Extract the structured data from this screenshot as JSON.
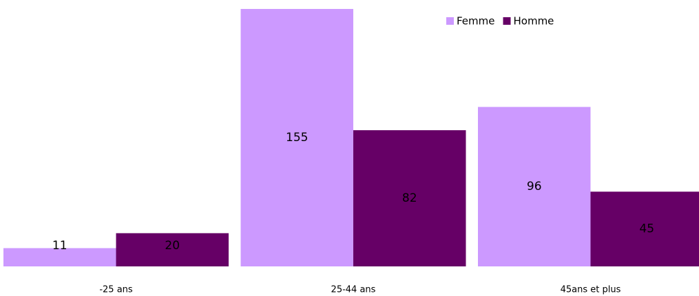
{
  "chart_data": {
    "type": "bar",
    "categories": [
      "-25 ans",
      "25-44 ans",
      "45ans et plus"
    ],
    "series": [
      {
        "name": "Femme",
        "color": "#cc99ff",
        "values": [
          11,
          155,
          96
        ]
      },
      {
        "name": "Homme",
        "color": "#660066",
        "values": [
          20,
          82,
          45
        ]
      }
    ],
    "legend": "top-right"
  }
}
